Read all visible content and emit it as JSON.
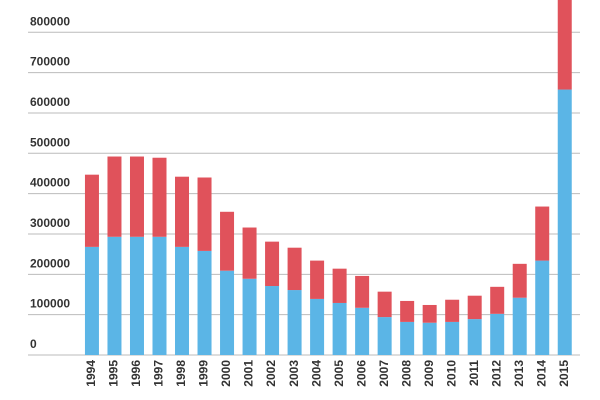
{
  "chart_data": {
    "type": "stacked_bar",
    "categories": [
      "1994",
      "1995",
      "1996",
      "1997",
      "1998",
      "1999",
      "2000",
      "2001",
      "2002",
      "2003",
      "2004",
      "2005",
      "2006",
      "2007",
      "2008",
      "2009",
      "2010",
      "2011",
      "2012",
      "2013",
      "2014",
      "2015"
    ],
    "series": [
      {
        "color": "#5bb5e6",
        "values": [
          268000,
          293000,
          293000,
          293000,
          268000,
          258000,
          209000,
          189000,
          171000,
          161000,
          139000,
          129000,
          117000,
          94000,
          82000,
          80000,
          82000,
          89000,
          102000,
          142000,
          234000,
          658000
        ]
      },
      {
        "color": "#e0525b",
        "values": [
          179000,
          199000,
          199000,
          196000,
          174000,
          182000,
          146000,
          127000,
          110000,
          105000,
          95000,
          85000,
          79000,
          63000,
          52000,
          44000,
          55000,
          58000,
          67000,
          84000,
          134000,
          240000
        ]
      }
    ],
    "ylim": [
      0,
      880000
    ],
    "yticks": [
      0,
      100000,
      200000,
      300000,
      400000,
      500000,
      600000,
      700000,
      800000
    ],
    "grid": true
  }
}
